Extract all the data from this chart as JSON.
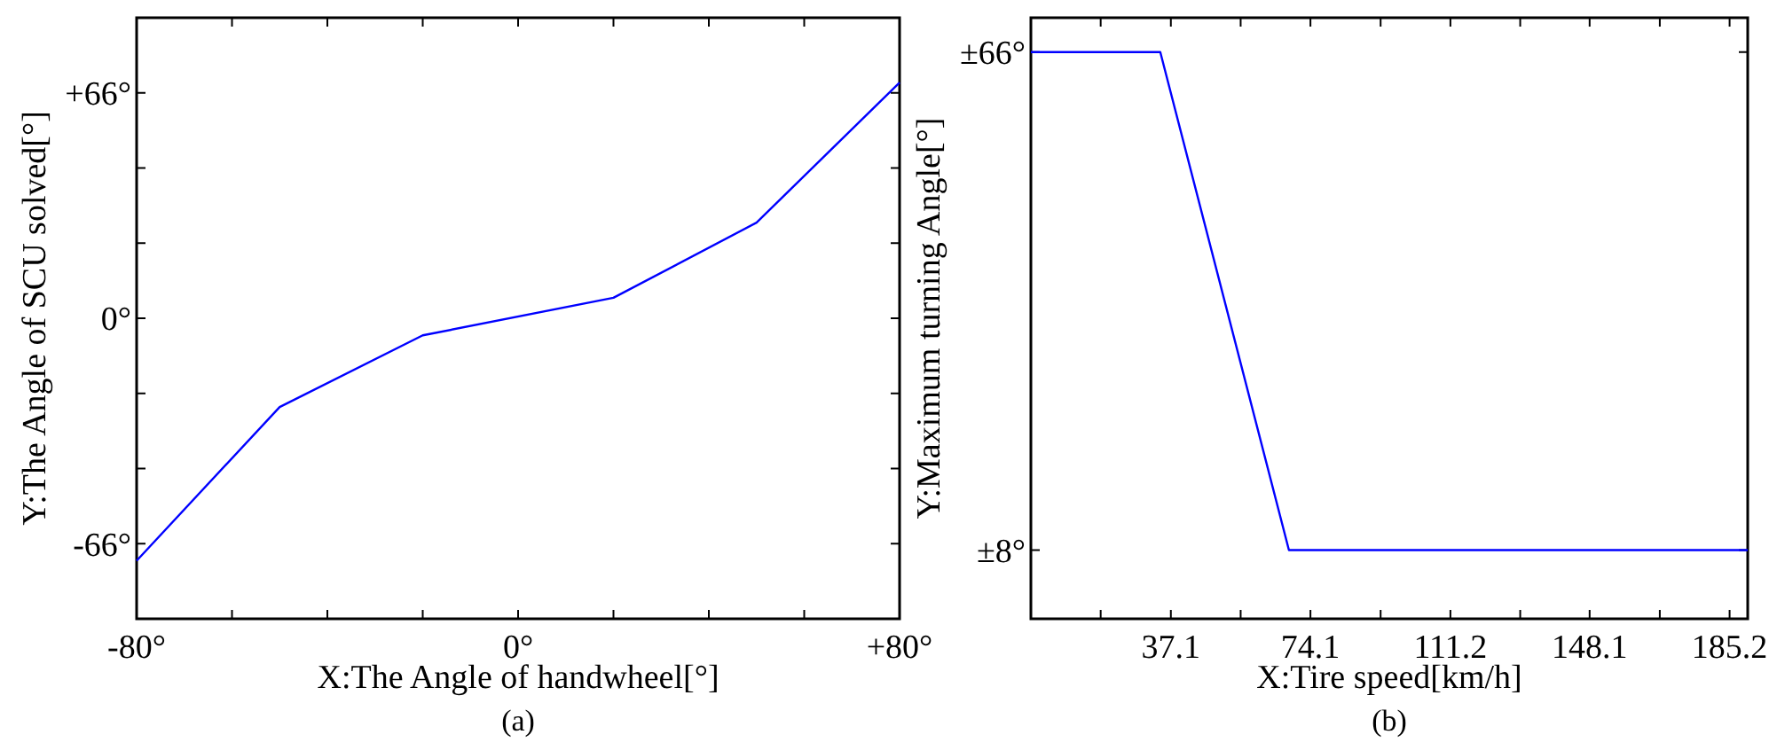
{
  "chart_data": [
    {
      "type": "line",
      "xlabel": "X:The Angle of handwheel[°]",
      "ylabel": "Y:The Angle of SCU solved[°]",
      "annotations": [
        "(a)"
      ],
      "grid": false,
      "xlim": [
        -80,
        80
      ],
      "xticks": [
        {
          "value": -80,
          "label": "-80°"
        },
        {
          "value": -60,
          "label": null
        },
        {
          "value": -40,
          "label": null
        },
        {
          "value": -20,
          "label": null
        },
        {
          "value": 0,
          "label": "0°"
        },
        {
          "value": 20,
          "label": null
        },
        {
          "value": 40,
          "label": null
        },
        {
          "value": 60,
          "label": null
        },
        {
          "value": 80,
          "label": "+80°"
        }
      ],
      "ylim": [
        -88,
        88
      ],
      "yticks": [
        {
          "value": -66,
          "label": "-66°"
        },
        {
          "value": -44,
          "label": null
        },
        {
          "value": -22,
          "label": null
        },
        {
          "value": 0,
          "label": "0°"
        },
        {
          "value": 22,
          "label": null
        },
        {
          "value": 44,
          "label": null
        },
        {
          "value": 66,
          "label": "+66°"
        }
      ],
      "series": [
        {
          "color": "#0000ff",
          "x": [
            -80,
            -50,
            -20,
            20,
            50,
            80
          ],
          "values": [
            -71,
            -26,
            -5,
            6,
            28,
            69
          ]
        }
      ]
    },
    {
      "type": "line",
      "xlabel": "X:Tire speed[km/h]",
      "ylabel": "Y:Maximum turning Angle[°]",
      "annotations": [
        "(b)"
      ],
      "grid": false,
      "xlim": [
        0,
        190
      ],
      "xticks": [
        {
          "value": 18.5,
          "label": null
        },
        37.1,
        {
          "value": 55.6,
          "label": null
        },
        74.1,
        {
          "value": 92.7,
          "label": null
        },
        111.2,
        {
          "value": 129.7,
          "label": null
        },
        148.1,
        {
          "value": 166.7,
          "label": null
        },
        185.2
      ],
      "ylim": [
        0,
        70
      ],
      "yticks": [
        {
          "value": 8,
          "label": "±8°"
        },
        {
          "value": 66,
          "label": "±66°"
        }
      ],
      "series": [
        {
          "color": "#0000ff",
          "x": [
            0,
            34.3,
            68.4,
            190
          ],
          "values": [
            66,
            66,
            8,
            8
          ]
        }
      ]
    }
  ]
}
